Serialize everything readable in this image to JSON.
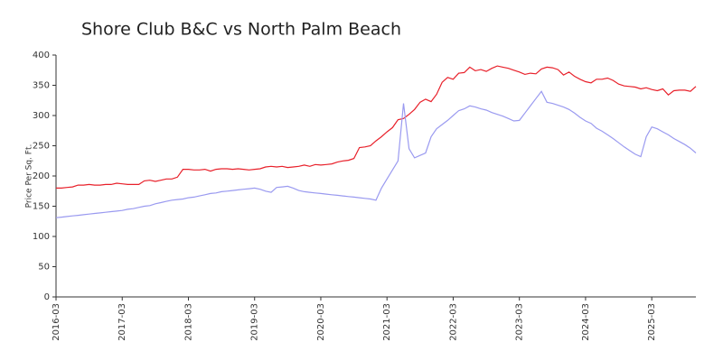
{
  "chart_data": {
    "type": "line",
    "title": "Shore Club B&C vs North Palm Beach",
    "y_label": "Price Per Sq. Ft.",
    "x": [
      "2016-03",
      "2016-04",
      "2016-05",
      "2016-06",
      "2016-07",
      "2016-08",
      "2016-09",
      "2016-10",
      "2016-11",
      "2016-12",
      "2017-01",
      "2017-02",
      "2017-03",
      "2017-04",
      "2017-05",
      "2017-06",
      "2017-07",
      "2017-08",
      "2017-09",
      "2017-10",
      "2017-11",
      "2017-12",
      "2018-01",
      "2018-02",
      "2018-03",
      "2018-04",
      "2018-05",
      "2018-06",
      "2018-07",
      "2018-08",
      "2018-09",
      "2018-10",
      "2018-11",
      "2018-12",
      "2019-01",
      "2019-02",
      "2019-03",
      "2019-04",
      "2019-05",
      "2019-06",
      "2019-07",
      "2019-08",
      "2019-09",
      "2019-10",
      "2019-11",
      "2019-12",
      "2020-01",
      "2020-02",
      "2020-03",
      "2020-04",
      "2020-05",
      "2020-06",
      "2020-07",
      "2020-08",
      "2020-09",
      "2020-10",
      "2020-11",
      "2020-12",
      "2021-01",
      "2021-02",
      "2021-03",
      "2021-04",
      "2021-05",
      "2021-06",
      "2021-07",
      "2021-08",
      "2021-09",
      "2021-10",
      "2021-11",
      "2021-12",
      "2022-01",
      "2022-02",
      "2022-03",
      "2022-04",
      "2022-05",
      "2022-06",
      "2022-07",
      "2022-08",
      "2022-09",
      "2022-10",
      "2022-11",
      "2022-12",
      "2023-01",
      "2023-02",
      "2023-03",
      "2023-04",
      "2023-05",
      "2023-06",
      "2023-07",
      "2023-08",
      "2023-09",
      "2023-10",
      "2023-11",
      "2023-12",
      "2024-01",
      "2024-02",
      "2024-03",
      "2024-04",
      "2024-05",
      "2024-06",
      "2024-07",
      "2024-08",
      "2024-09",
      "2024-10",
      "2024-11",
      "2024-12",
      "2025-01",
      "2025-02",
      "2025-03",
      "2025-04",
      "2025-05",
      "2025-06",
      "2025-07",
      "2025-08",
      "2025-09",
      "2025-10",
      "2025-11"
    ],
    "series": [
      {
        "color": "#e8202a",
        "values": [
          180,
          180,
          181,
          182,
          185,
          185,
          186,
          185,
          185,
          186,
          186,
          188,
          187,
          186,
          186,
          186,
          192,
          193,
          191,
          193,
          195,
          195,
          198,
          211,
          211,
          210,
          210,
          211,
          208,
          211,
          212,
          212,
          211,
          212,
          211,
          210,
          211,
          212,
          215,
          216,
          215,
          216,
          214,
          215,
          216,
          218,
          216,
          219,
          218,
          219,
          220,
          223,
          225,
          226,
          229,
          247,
          248,
          250,
          258,
          265,
          273,
          280,
          293,
          295,
          302,
          310,
          322,
          327,
          323,
          335,
          355,
          363,
          360,
          370,
          371,
          380,
          374,
          376,
          373,
          378,
          382,
          380,
          378,
          375,
          372,
          368,
          370,
          369,
          377,
          380,
          379,
          376,
          367,
          372,
          365,
          360,
          356,
          354,
          360,
          360,
          362,
          358,
          352,
          349,
          348,
          347,
          344,
          346,
          343,
          341,
          344,
          334,
          341,
          342,
          342,
          340,
          348
        ]
      },
      {
        "color": "#9a9af0",
        "values": [
          131,
          132,
          133,
          134,
          135,
          136,
          137,
          138,
          139,
          140,
          141,
          142,
          143,
          145,
          146,
          148,
          150,
          151,
          154,
          156,
          158,
          160,
          161,
          162,
          164,
          165,
          167,
          169,
          171,
          172,
          174,
          175,
          176,
          177,
          178,
          179,
          180,
          178,
          175,
          173,
          181,
          182,
          183,
          180,
          176,
          174,
          173,
          172,
          171,
          170,
          169,
          168,
          167,
          166,
          165,
          164,
          163,
          162,
          160,
          180,
          195,
          210,
          225,
          320,
          245,
          230,
          234,
          238,
          265,
          278,
          285,
          292,
          300,
          308,
          311,
          316,
          314,
          311,
          309,
          305,
          302,
          299,
          295,
          291,
          292,
          304,
          316,
          328,
          340,
          322,
          320,
          317,
          314,
          310,
          304,
          297,
          291,
          287,
          279,
          274,
          268,
          262,
          255,
          248,
          242,
          236,
          232,
          265,
          281,
          278,
          273,
          268,
          262,
          257,
          252,
          246,
          238
        ]
      }
    ],
    "xlim": [
      "2016-03",
      "2025-11"
    ],
    "xticks": [
      "2016-03",
      "2017-03",
      "2018-03",
      "2019-03",
      "2020-03",
      "2021-03",
      "2022-03",
      "2023-03",
      "2024-03",
      "2025-03"
    ],
    "ylim": [
      0,
      400
    ],
    "yticks": [
      0,
      50,
      100,
      150,
      200,
      250,
      300,
      350,
      400
    ],
    "grid": false
  }
}
